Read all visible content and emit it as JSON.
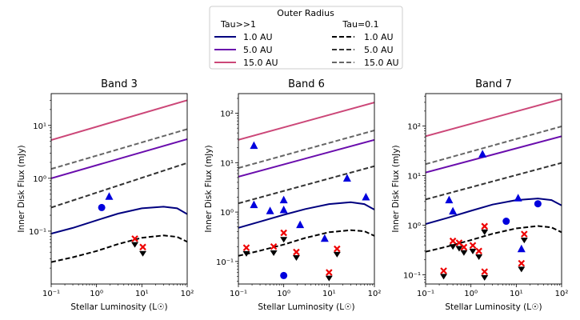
{
  "legend": {
    "title": "Outer Radius",
    "col1_header": "Tau>>1",
    "col2_header": "Tau=0.1",
    "entries_tau_thick": [
      {
        "label": "1.0 AU",
        "color": "#00007f"
      },
      {
        "label": "5.0 AU",
        "color": "#6a0dad"
      },
      {
        "label": "15.0 AU",
        "color": "#cc4778"
      }
    ],
    "entries_tau_thin": [
      {
        "label": "1.0 AU",
        "color": "#000000"
      },
      {
        "label": "5.0 AU",
        "color": "#333333"
      },
      {
        "label": "15.0 AU",
        "color": "#666666"
      }
    ]
  },
  "colors": {
    "marker_blue": "#0000dd",
    "marker_red": "#ee0000",
    "marker_black": "#000000"
  },
  "chart_data": [
    {
      "type": "scatter",
      "title": "Band 3",
      "xlabel": "Stellar Luminosity (L☉)",
      "ylabel": "Inner Disk Flux (mJy)",
      "xscale": "log",
      "yscale": "log",
      "xlim": [
        0.1,
        100
      ],
      "ylim": [
        0.01,
        40
      ],
      "xticks": [
        0.1,
        1,
        10,
        100
      ],
      "xticklabels": [
        "10⁻¹",
        "10⁰",
        "10¹",
        "10²"
      ],
      "yticks": [
        0.1,
        1,
        10
      ],
      "yticklabels": [
        "10⁻¹",
        "10⁰",
        "10¹"
      ],
      "lines": [
        {
          "name": "Tau>>1 1.0 AU",
          "style": "solid",
          "color": "#00007f",
          "x": [
            0.1,
            0.3,
            1,
            3,
            10,
            30,
            60,
            100
          ],
          "y": [
            0.09,
            0.115,
            0.16,
            0.215,
            0.27,
            0.29,
            0.27,
            0.21
          ]
        },
        {
          "name": "Tau>>1 5.0 AU",
          "style": "solid",
          "color": "#6a0dad",
          "x": [
            0.1,
            100
          ],
          "y": [
            1.0,
            5.5
          ]
        },
        {
          "name": "Tau>>1 15.0 AU",
          "style": "solid",
          "color": "#cc4778",
          "x": [
            0.1,
            100
          ],
          "y": [
            5.3,
            30
          ]
        },
        {
          "name": "Tau=0.1 1.0 AU",
          "style": "dashed",
          "color": "#000000",
          "x": [
            0.1,
            0.3,
            1,
            3,
            10,
            30,
            60,
            100
          ],
          "y": [
            0.026,
            0.032,
            0.042,
            0.057,
            0.075,
            0.083,
            0.078,
            0.063
          ]
        },
        {
          "name": "Tau=0.1 5.0 AU",
          "style": "dashed",
          "color": "#333333",
          "x": [
            0.1,
            100
          ],
          "y": [
            0.28,
            1.95
          ]
        },
        {
          "name": "Tau=0.1 15.0 AU",
          "style": "dashed",
          "color": "#666666",
          "x": [
            0.1,
            100
          ],
          "y": [
            1.5,
            8.5
          ]
        }
      ],
      "points": [
        {
          "marker": "circle",
          "x": 1.3,
          "y": 0.28
        },
        {
          "marker": "triangle",
          "x": 1.9,
          "y": 0.45
        },
        {
          "marker": "x",
          "x": 7.0,
          "y": 0.072
        },
        {
          "marker": "x",
          "x": 10.5,
          "y": 0.05
        }
      ],
      "upper_limits": [
        {
          "x": 7.0,
          "y": 0.056
        },
        {
          "x": 10.5,
          "y": 0.038
        }
      ]
    },
    {
      "type": "scatter",
      "title": "Band 6",
      "xlabel": "Stellar Luminosity (L☉)",
      "ylabel": "Inner Disk Flux (mJy)",
      "xscale": "log",
      "yscale": "log",
      "xlim": [
        0.1,
        100
      ],
      "ylim": [
        0.035,
        250
      ],
      "xticks": [
        0.1,
        1,
        10,
        100
      ],
      "xticklabels": [
        "10⁻¹",
        "10⁰",
        "10¹",
        "10²"
      ],
      "yticks": [
        0.1,
        1,
        10,
        100
      ],
      "yticklabels": [
        "10⁻¹",
        "10⁰",
        "10¹",
        "10²"
      ],
      "lines": [
        {
          "name": "Tau>>1 1.0 AU",
          "style": "solid",
          "color": "#00007f",
          "x": [
            0.1,
            0.3,
            1,
            3,
            10,
            30,
            60,
            100
          ],
          "y": [
            0.48,
            0.64,
            0.88,
            1.15,
            1.45,
            1.58,
            1.45,
            1.12
          ]
        },
        {
          "name": "Tau>>1 5.0 AU",
          "style": "solid",
          "color": "#6a0dad",
          "x": [
            0.1,
            100
          ],
          "y": [
            5.2,
            29
          ]
        },
        {
          "name": "Tau>>1 15.0 AU",
          "style": "solid",
          "color": "#cc4778",
          "x": [
            0.1,
            100
          ],
          "y": [
            29,
            165
          ]
        },
        {
          "name": "Tau=0.1 1.0 AU",
          "style": "dashed",
          "color": "#000000",
          "x": [
            0.1,
            0.3,
            1,
            3,
            10,
            30,
            60,
            100
          ],
          "y": [
            0.13,
            0.165,
            0.22,
            0.3,
            0.39,
            0.43,
            0.41,
            0.33
          ]
        },
        {
          "name": "Tau=0.1 5.0 AU",
          "style": "dashed",
          "color": "#333333",
          "x": [
            0.1,
            100
          ],
          "y": [
            1.5,
            8.5
          ]
        },
        {
          "name": "Tau=0.1 15.0 AU",
          "style": "dashed",
          "color": "#666666",
          "x": [
            0.1,
            100
          ],
          "y": [
            7.8,
            45
          ]
        }
      ],
      "points": [
        {
          "marker": "triangle",
          "x": 0.22,
          "y": 22
        },
        {
          "marker": "triangle",
          "x": 0.22,
          "y": 1.4
        },
        {
          "marker": "triangle",
          "x": 0.5,
          "y": 1.05
        },
        {
          "marker": "triangle",
          "x": 1.0,
          "y": 1.75
        },
        {
          "marker": "triangle",
          "x": 1.0,
          "y": 1.1
        },
        {
          "marker": "triangle",
          "x": 2.3,
          "y": 0.55
        },
        {
          "marker": "triangle",
          "x": 8.0,
          "y": 0.29
        },
        {
          "marker": "triangle",
          "x": 25,
          "y": 4.8
        },
        {
          "marker": "triangle",
          "x": 65,
          "y": 2.0
        },
        {
          "marker": "circle",
          "x": 1.0,
          "y": 0.052
        },
        {
          "marker": "x",
          "x": 0.15,
          "y": 0.19
        },
        {
          "marker": "x",
          "x": 0.6,
          "y": 0.2
        },
        {
          "marker": "x",
          "x": 1.0,
          "y": 0.38
        },
        {
          "marker": "x",
          "x": 1.9,
          "y": 0.155
        },
        {
          "marker": "x",
          "x": 10,
          "y": 0.06
        },
        {
          "marker": "x",
          "x": 15,
          "y": 0.18
        }
      ],
      "upper_limits": [
        {
          "x": 0.15,
          "y": 0.145
        },
        {
          "x": 0.6,
          "y": 0.15
        },
        {
          "x": 1.0,
          "y": 0.28
        },
        {
          "x": 1.9,
          "y": 0.12
        },
        {
          "x": 10,
          "y": 0.046
        },
        {
          "x": 15,
          "y": 0.14
        }
      ]
    },
    {
      "type": "scatter",
      "title": "Band 7",
      "xlabel": "Stellar Luminosity (L☉)",
      "ylabel": "Inner Disk Flux (mJy)",
      "xscale": "log",
      "yscale": "log",
      "xlim": [
        0.1,
        100
      ],
      "ylim": [
        0.065,
        450
      ],
      "xticks": [
        0.1,
        1,
        10,
        100
      ],
      "xticklabels": [
        "10⁻¹",
        "10⁰",
        "10¹",
        "10²"
      ],
      "yticks": [
        0.1,
        1,
        10,
        100
      ],
      "yticklabels": [
        "10⁻¹",
        "10⁰",
        "10¹",
        "10²"
      ],
      "lines": [
        {
          "name": "Tau>>1 1.0 AU",
          "style": "solid",
          "color": "#00007f",
          "x": [
            0.1,
            0.3,
            1,
            3,
            10,
            30,
            60,
            100
          ],
          "y": [
            1.05,
            1.4,
            1.95,
            2.6,
            3.2,
            3.45,
            3.2,
            2.5
          ]
        },
        {
          "name": "Tau>>1 5.0 AU",
          "style": "solid",
          "color": "#6a0dad",
          "x": [
            0.1,
            100
          ],
          "y": [
            11.5,
            62
          ]
        },
        {
          "name": "Tau>>1 15.0 AU",
          "style": "solid",
          "color": "#cc4778",
          "x": [
            0.1,
            100
          ],
          "y": [
            62,
            350
          ]
        },
        {
          "name": "Tau=0.1 1.0 AU",
          "style": "dashed",
          "color": "#000000",
          "x": [
            0.1,
            0.3,
            1,
            3,
            10,
            30,
            60,
            100
          ],
          "y": [
            0.29,
            0.37,
            0.5,
            0.67,
            0.86,
            0.96,
            0.9,
            0.72
          ]
        },
        {
          "name": "Tau=0.1 5.0 AU",
          "style": "dashed",
          "color": "#333333",
          "x": [
            0.1,
            100
          ],
          "y": [
            3.3,
            18
          ]
        },
        {
          "name": "Tau=0.1 15.0 AU",
          "style": "dashed",
          "color": "#666666",
          "x": [
            0.1,
            100
          ],
          "y": [
            17,
            98
          ]
        }
      ],
      "points": [
        {
          "marker": "triangle",
          "x": 1.8,
          "y": 27
        },
        {
          "marker": "triangle",
          "x": 0.33,
          "y": 3.2
        },
        {
          "marker": "triangle",
          "x": 0.4,
          "y": 1.9
        },
        {
          "marker": "triangle",
          "x": 11,
          "y": 3.5
        },
        {
          "marker": "triangle",
          "x": 13,
          "y": 0.33
        },
        {
          "marker": "circle",
          "x": 6.0,
          "y": 1.2
        },
        {
          "marker": "circle",
          "x": 30,
          "y": 2.7
        },
        {
          "marker": "x",
          "x": 0.25,
          "y": 0.12
        },
        {
          "marker": "x",
          "x": 0.4,
          "y": 0.48
        },
        {
          "marker": "x",
          "x": 0.55,
          "y": 0.44
        },
        {
          "marker": "x",
          "x": 0.7,
          "y": 0.36
        },
        {
          "marker": "x",
          "x": 1.1,
          "y": 0.39
        },
        {
          "marker": "x",
          "x": 1.5,
          "y": 0.3
        },
        {
          "marker": "x",
          "x": 2.0,
          "y": 0.95
        },
        {
          "marker": "x",
          "x": 2.0,
          "y": 0.115
        },
        {
          "marker": "x",
          "x": 13,
          "y": 0.17
        },
        {
          "marker": "x",
          "x": 15,
          "y": 0.66
        }
      ],
      "upper_limits": [
        {
          "x": 0.25,
          "y": 0.093
        },
        {
          "x": 0.4,
          "y": 0.37
        },
        {
          "x": 0.55,
          "y": 0.34
        },
        {
          "x": 0.7,
          "y": 0.28
        },
        {
          "x": 1.1,
          "y": 0.3
        },
        {
          "x": 1.5,
          "y": 0.23
        },
        {
          "x": 2.0,
          "y": 0.73
        },
        {
          "x": 2.0,
          "y": 0.088
        },
        {
          "x": 13,
          "y": 0.13
        },
        {
          "x": 15,
          "y": 0.5
        }
      ]
    }
  ]
}
